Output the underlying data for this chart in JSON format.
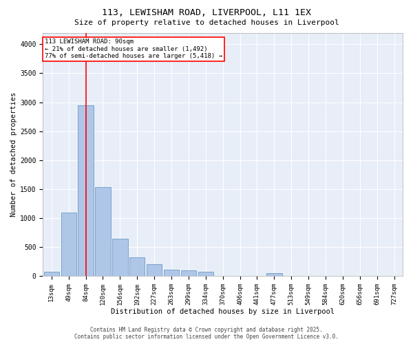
{
  "title_line1": "113, LEWISHAM ROAD, LIVERPOOL, L11 1EX",
  "title_line2": "Size of property relative to detached houses in Liverpool",
  "xlabel": "Distribution of detached houses by size in Liverpool",
  "ylabel": "Number of detached properties",
  "annotation_line1": "113 LEWISHAM ROAD: 90sqm",
  "annotation_line2": "← 21% of detached houses are smaller (1,492)",
  "annotation_line3": "77% of semi-detached houses are larger (5,418) →",
  "footer_line1": "Contains HM Land Registry data © Crown copyright and database right 2025.",
  "footer_line2": "Contains public sector information licensed under the Open Government Licence v3.0.",
  "categories": [
    "13sqm",
    "49sqm",
    "84sqm",
    "120sqm",
    "156sqm",
    "192sqm",
    "227sqm",
    "263sqm",
    "299sqm",
    "334sqm",
    "370sqm",
    "406sqm",
    "441sqm",
    "477sqm",
    "513sqm",
    "549sqm",
    "584sqm",
    "620sqm",
    "656sqm",
    "691sqm",
    "727sqm"
  ],
  "values": [
    75,
    1100,
    2950,
    1540,
    640,
    330,
    210,
    110,
    100,
    80,
    5,
    5,
    5,
    50,
    5,
    5,
    5,
    5,
    5,
    5,
    5
  ],
  "bar_color": "#aec6e8",
  "bar_edge_color": "#5b8db8",
  "vline_x": 2,
  "vline_color": "red",
  "bg_color": "#e8eef8",
  "annotation_box_color": "white",
  "annotation_box_edge": "red",
  "ylim": [
    0,
    4200
  ],
  "yticks": [
    0,
    500,
    1000,
    1500,
    2000,
    2500,
    3000,
    3500,
    4000
  ]
}
